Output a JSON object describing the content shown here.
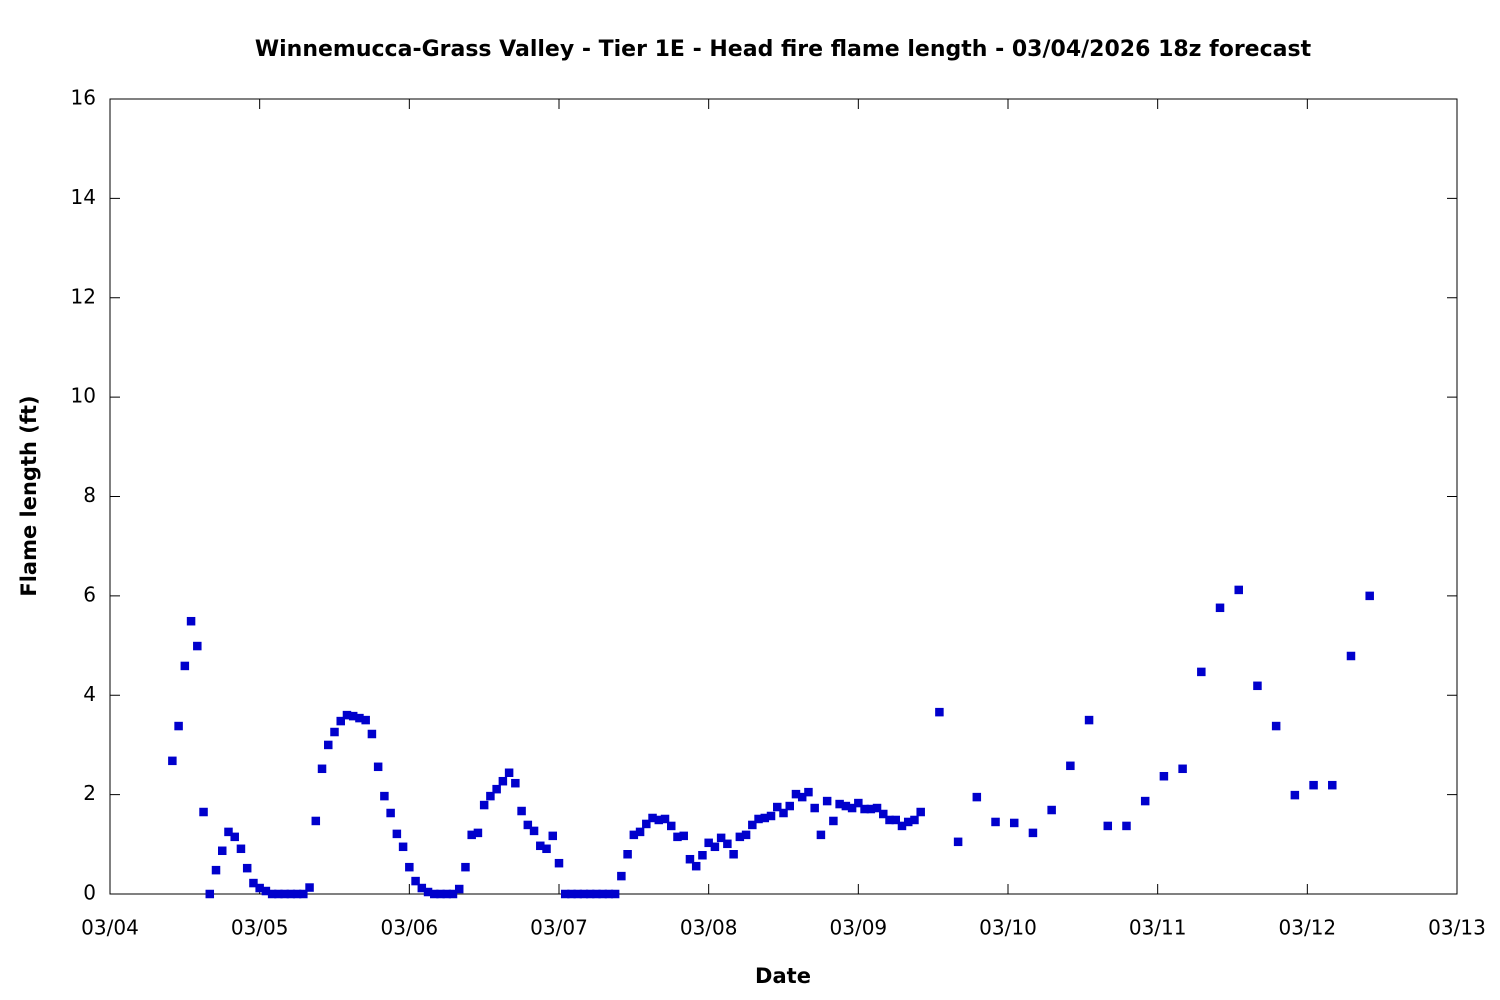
{
  "chart_data": {
    "type": "scatter",
    "title": "Winnemucca-Grass Valley - Tier 1E - Head fire flame length - 03/04/2026 18z forecast",
    "xlabel": "Date",
    "ylabel": "Flame length (ft)",
    "color": "#0000cc",
    "xlim": [
      0,
      216
    ],
    "xticks": [
      {
        "value": 0,
        "label": "03/04"
      },
      {
        "value": 24,
        "label": "03/05"
      },
      {
        "value": 48,
        "label": "03/06"
      },
      {
        "value": 72,
        "label": "03/07"
      },
      {
        "value": 96,
        "label": "03/08"
      },
      {
        "value": 120,
        "label": "03/09"
      },
      {
        "value": 144,
        "label": "03/10"
      },
      {
        "value": 168,
        "label": "03/11"
      },
      {
        "value": 192,
        "label": "03/12"
      },
      {
        "value": 216,
        "label": "03/13"
      }
    ],
    "ylim": [
      0,
      16
    ],
    "yticks": [
      0,
      2,
      4,
      6,
      8,
      10,
      12,
      14,
      16
    ],
    "x": [
      10,
      11,
      12,
      13,
      14,
      15,
      16,
      17,
      18,
      19,
      20,
      21,
      22,
      23,
      24,
      25,
      26,
      27,
      28,
      29,
      30,
      31,
      32,
      33,
      34,
      35,
      36,
      37,
      38,
      39,
      40,
      41,
      42,
      43,
      44,
      45,
      46,
      47,
      48,
      49,
      50,
      51,
      52,
      53,
      54,
      55,
      56,
      57,
      58,
      59,
      60,
      61,
      62,
      63,
      64,
      65,
      66,
      67,
      68,
      69,
      70,
      71,
      72,
      73,
      74,
      75,
      76,
      77,
      78,
      79,
      80,
      81,
      82,
      83,
      84,
      85,
      86,
      87,
      88,
      89,
      90,
      91,
      92,
      93,
      94,
      95,
      96,
      97,
      98,
      99,
      100,
      101,
      102,
      103,
      104,
      105,
      106,
      107,
      108,
      109,
      110,
      111,
      112,
      113,
      114,
      115,
      116,
      117,
      118,
      119,
      120,
      121,
      122,
      123,
      124,
      125,
      126,
      127,
      128,
      129,
      130,
      133,
      136,
      139,
      142,
      145,
      148,
      151,
      154,
      157,
      160,
      163,
      166,
      169,
      172,
      175,
      178,
      181,
      184,
      187,
      190,
      193,
      196,
      199,
      202
    ],
    "values": [
      2.68,
      3.38,
      4.59,
      5.49,
      4.99,
      1.65,
      0,
      0.48,
      0.87,
      1.25,
      1.15,
      0.91,
      0.52,
      0.22,
      0.12,
      0.06,
      0,
      0,
      0,
      0,
      0,
      0,
      0.13,
      1.47,
      2.52,
      3.0,
      3.26,
      3.48,
      3.6,
      3.58,
      3.54,
      3.5,
      3.22,
      2.56,
      1.97,
      1.63,
      1.21,
      0.95,
      0.54,
      0.26,
      0.12,
      0.04,
      0,
      0,
      0,
      0,
      0.1,
      0.54,
      1.19,
      1.23,
      1.79,
      1.97,
      2.11,
      2.27,
      2.44,
      2.23,
      1.67,
      1.39,
      1.27,
      0.97,
      0.91,
      1.17,
      0.62,
      0,
      0,
      0,
      0,
      0,
      0,
      0,
      0,
      0,
      0.36,
      0.8,
      1.19,
      1.25,
      1.41,
      1.53,
      1.49,
      1.51,
      1.37,
      1.15,
      1.17,
      0.7,
      0.56,
      0.78,
      1.03,
      0.95,
      1.13,
      1.01,
      0.8,
      1.15,
      1.19,
      1.39,
      1.51,
      1.53,
      1.57,
      1.75,
      1.63,
      1.77,
      2.01,
      1.95,
      2.05,
      1.73,
      1.19,
      1.87,
      1.47,
      1.81,
      1.77,
      1.73,
      1.83,
      1.71,
      1.71,
      1.73,
      1.61,
      1.49,
      1.49,
      1.37,
      1.45,
      1.49,
      1.65,
      3.66,
      1.05,
      1.95,
      1.45,
      1.43,
      1.23,
      1.69,
      2.58,
      3.5,
      1.37,
      1.37,
      1.87,
      2.37,
      2.52,
      4.47,
      5.76,
      6.12,
      4.19,
      3.38,
      1.99,
      2.19,
      2.19,
      4.79,
      6.0
    ]
  }
}
